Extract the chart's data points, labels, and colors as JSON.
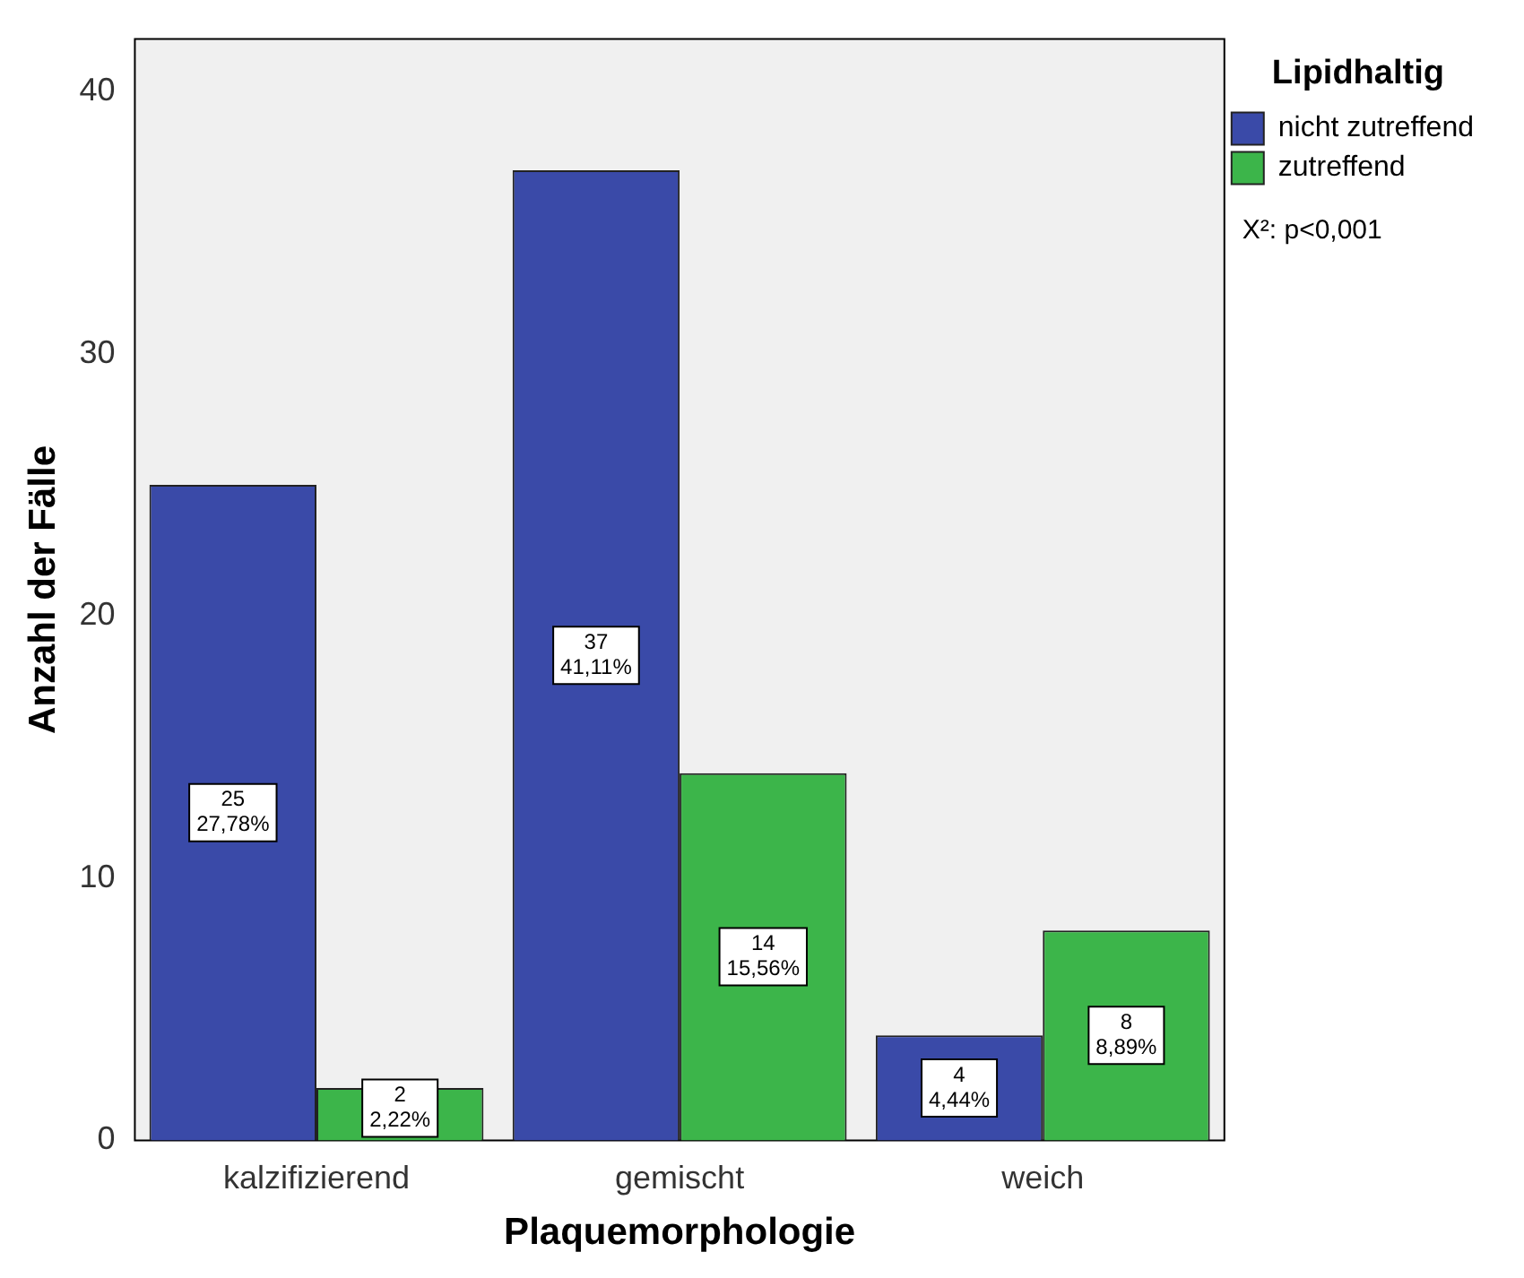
{
  "chart_data": {
    "type": "bar",
    "xlabel": "Plaquemorphologie",
    "ylabel": "Anzahl der Fälle",
    "legend_title": "Lipidhaltig",
    "annotations": [
      "X²: p<0,001"
    ],
    "categories": [
      "kalzifizierend",
      "gemischt",
      "weich"
    ],
    "series": [
      {
        "name": "nicht zutreffend",
        "color": "#3a4aa8",
        "values": [
          25,
          37,
          4
        ],
        "value_labels": [
          "25\n27,78%",
          "37\n41,11%",
          "4\n4,44%"
        ]
      },
      {
        "name": "zutreffend",
        "color": "#3cb54a",
        "values": [
          2,
          14,
          8
        ],
        "value_labels": [
          "2\n2,22%",
          "14\n15,56%",
          "8\n8,89%"
        ]
      }
    ],
    "ylim": [
      0,
      42
    ],
    "yticks": [
      0,
      10,
      20,
      30,
      40
    ],
    "grid": false,
    "legend": "top right"
  }
}
